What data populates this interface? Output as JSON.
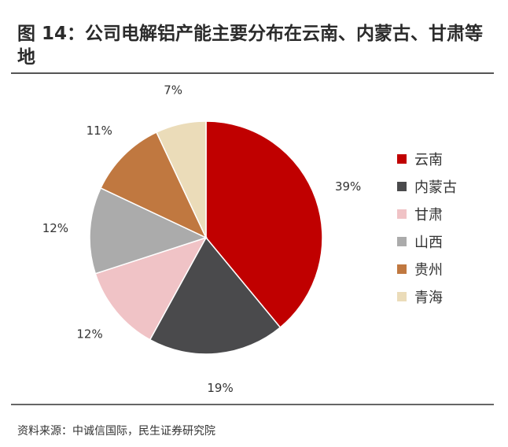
{
  "title": "图 14：公司电解铝产能主要分布在云南、内蒙古、甘肃等地",
  "source": "资料来源：中诚信国际，民生证券研究院",
  "chart_data": {
    "type": "pie",
    "title": "图 14：公司电解铝产能主要分布在云南、内蒙古、甘肃等地",
    "legend_position": "right",
    "categories": [
      "云南",
      "内蒙古",
      "甘肃",
      "山西",
      "贵州",
      "青海"
    ],
    "values": [
      39,
      19,
      12,
      12,
      11,
      7
    ],
    "labels": [
      "39%",
      "19%",
      "12%",
      "12%",
      "11%",
      "7%"
    ],
    "colors": [
      "#c00000",
      "#4a4a4c",
      "#f0c3c6",
      "#ababab",
      "#c07840",
      "#ebdcb9"
    ]
  }
}
